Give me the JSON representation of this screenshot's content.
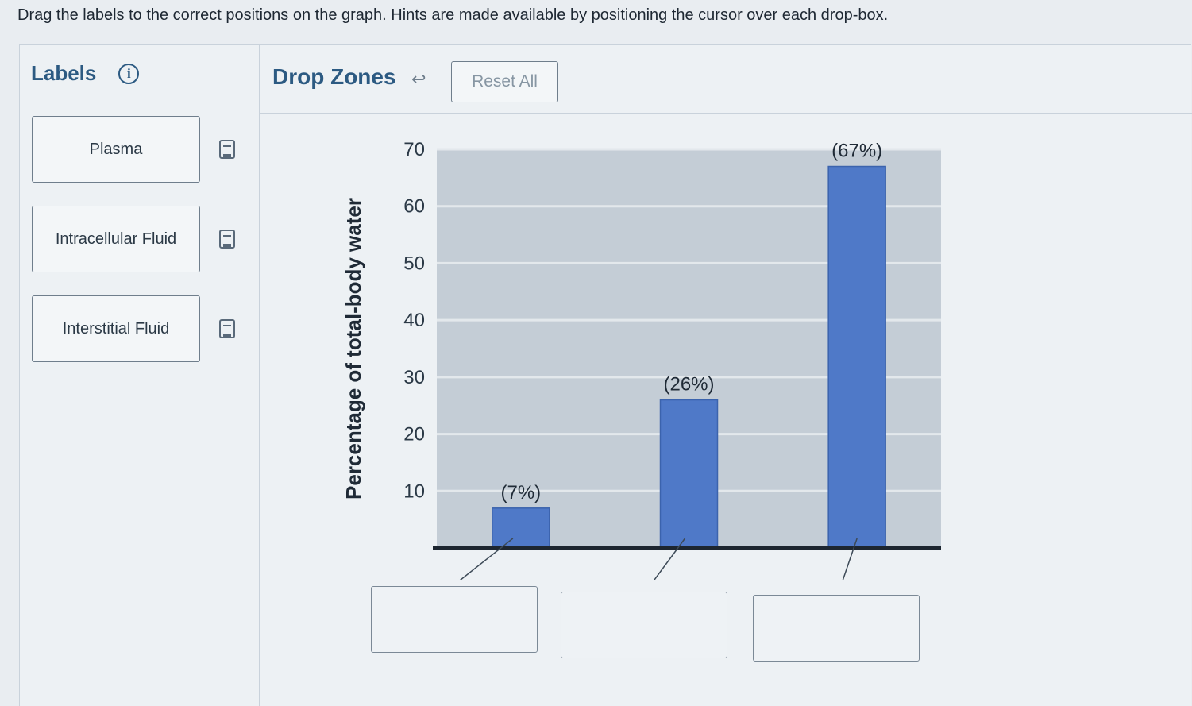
{
  "instructions": "Drag the labels to the correct positions on the graph. Hints are made available by positioning the cursor over each drop-box.",
  "labels_panel": {
    "title": "Labels",
    "info_icon": "i",
    "items": [
      {
        "label": "Plasma"
      },
      {
        "label": "Intracellular Fluid"
      },
      {
        "label": "Interstitial Fluid"
      }
    ]
  },
  "drop_zones": {
    "title": "Drop Zones",
    "undo_icon": "↩",
    "reset_label": "Reset All"
  },
  "chart_data": {
    "type": "bar",
    "ylabel": "Percentage of total-body water",
    "ylim": [
      0,
      70
    ],
    "yticks": [
      10,
      20,
      30,
      40,
      50,
      60,
      70
    ],
    "grid": true,
    "series": [
      {
        "values": [
          7,
          26,
          67
        ],
        "data_labels": [
          "(7%)",
          "(26%)",
          "(67%)"
        ]
      }
    ],
    "colors": {
      "bar": "#4f79c8",
      "plot_bg": "#c4cdd6",
      "grid": "#e3e8ec"
    }
  }
}
